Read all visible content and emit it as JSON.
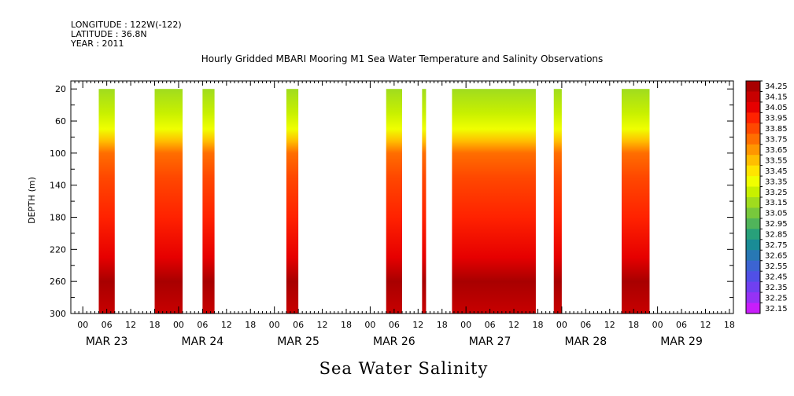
{
  "header": {
    "longitude": "LONGITUDE : 122W(-122)",
    "latitude": "LATITUDE : 36.8N",
    "year": "YEAR : 2011"
  },
  "chart_data": {
    "type": "heatmap",
    "title": "Hourly Gridded MBARI Mooring M1 Sea Water Temperature and Salinity Observations",
    "ylabel": "DEPTH (m)",
    "bottom_label": "Sea Water Salinity",
    "y_reversed": true,
    "ylim": [
      300,
      10
    ],
    "y_ticks": [
      20,
      60,
      100,
      140,
      180,
      220,
      260,
      300
    ],
    "x_hour_ticks": [
      "00",
      "06",
      "12",
      "18",
      "00",
      "06",
      "12",
      "18",
      "00",
      "06",
      "12",
      "18",
      "00",
      "06",
      "12",
      "18",
      "00",
      "06",
      "12",
      "18",
      "00",
      "06",
      "12",
      "18",
      "00",
      "06",
      "12",
      "18"
    ],
    "x_day_labels": [
      "MAR 23",
      "MAR 24",
      "MAR 25",
      "MAR 26",
      "MAR 27",
      "MAR 28",
      "MAR 29"
    ],
    "x_range_hours": [
      -3,
      163
    ],
    "data_blocks_hours": [
      [
        4,
        8
      ],
      [
        18,
        25
      ],
      [
        30,
        33
      ],
      [
        51,
        54
      ],
      [
        76,
        80
      ],
      [
        85,
        86
      ],
      [
        92.5,
        113.5
      ],
      [
        118,
        120
      ],
      [
        135,
        142
      ]
    ],
    "colorbar_levels": [
      "34.25",
      "34.15",
      "34.05",
      "33.95",
      "33.85",
      "33.75",
      "33.65",
      "33.55",
      "33.45",
      "33.35",
      "33.25",
      "33.15",
      "33.05",
      "32.95",
      "32.85",
      "32.75",
      "32.65",
      "32.55",
      "32.45",
      "32.35",
      "32.25",
      "32.15"
    ],
    "colorbar_colors": [
      "#a80000",
      "#c80000",
      "#e60000",
      "#ff2200",
      "#ff4800",
      "#ff6e00",
      "#ff9600",
      "#ffbe00",
      "#ffe400",
      "#f0ff00",
      "#c8f000",
      "#a0dc1e",
      "#78c83c",
      "#50b45a",
      "#28a07a",
      "#1a8c96",
      "#2878b4",
      "#3c64d2",
      "#5050e6",
      "#7040f0",
      "#9632f5",
      "#c81efa"
    ],
    "depth_profile": [
      {
        "depth": 20,
        "value": 33.15
      },
      {
        "depth": 50,
        "value": 33.2
      },
      {
        "depth": 70,
        "value": 33.35
      },
      {
        "depth": 85,
        "value": 33.55
      },
      {
        "depth": 100,
        "value": 33.7
      },
      {
        "depth": 130,
        "value": 33.85
      },
      {
        "depth": 180,
        "value": 33.95
      },
      {
        "depth": 230,
        "value": 34.05
      },
      {
        "depth": 260,
        "value": 34.2
      },
      {
        "depth": 300,
        "value": 34.1
      }
    ]
  }
}
